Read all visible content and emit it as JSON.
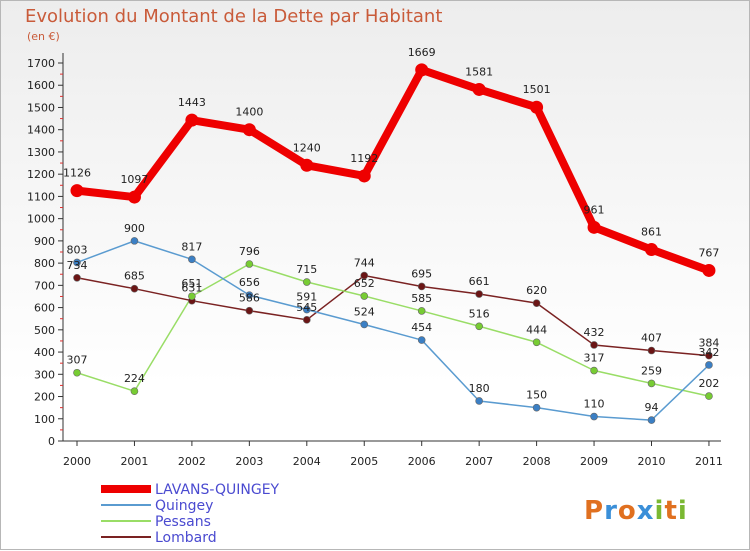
{
  "chart_data": {
    "type": "line",
    "title": "Evolution du Montant de la Dette par Habitant",
    "subtitle": "(en €)",
    "categories": [
      "2000",
      "2001",
      "2002",
      "2003",
      "2004",
      "2005",
      "2006",
      "2007",
      "2008",
      "2009",
      "2010",
      "2011"
    ],
    "ylim": [
      0,
      1700
    ],
    "yticks": [
      0,
      100,
      200,
      300,
      400,
      500,
      600,
      700,
      800,
      900,
      1000,
      1100,
      1200,
      1300,
      1400,
      1500,
      1600,
      1700
    ],
    "grid": false,
    "legend_position": "bottom-left",
    "series": [
      {
        "name": "LAVANS-QUINGEY",
        "color": "#ee0000",
        "point_color": "#ee0000",
        "values": [
          1126,
          1097,
          1443,
          1400,
          1240,
          1192,
          1669,
          1581,
          1501,
          961,
          861,
          767
        ]
      },
      {
        "name": "Quingey",
        "color": "#5a9bd0",
        "point_color": "#3b7fc4",
        "values": [
          803,
          900,
          817,
          656,
          591,
          524,
          454,
          180,
          150,
          110,
          94,
          342
        ]
      },
      {
        "name": "Pessans",
        "color": "#99dd66",
        "point_color": "#77cc33",
        "values": [
          307,
          224,
          651,
          796,
          715,
          652,
          585,
          516,
          444,
          317,
          259,
          202
        ]
      },
      {
        "name": "Lombard",
        "color": "#7a2222",
        "point_color": "#6b1515",
        "values": [
          734,
          685,
          631,
          586,
          545,
          744,
          695,
          661,
          620,
          432,
          407,
          384
        ]
      }
    ]
  },
  "brand": {
    "letters": [
      "P",
      "r",
      "o",
      "x",
      "i",
      "t",
      "i"
    ],
    "colors": [
      "#e07020",
      "#3a8fd8",
      "#e07020",
      "#3a8fd8",
      "#7ab832",
      "#e07020",
      "#7ab832"
    ]
  }
}
